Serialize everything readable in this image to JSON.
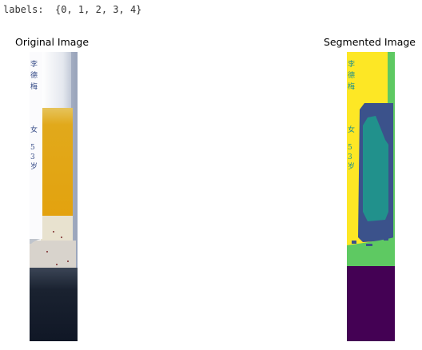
{
  "output": {
    "labels_line": "labels:  {0, 1, 2, 3, 4}"
  },
  "figure": {
    "left_title": "Original Image",
    "right_title": "Segmented Image",
    "left_handwriting": "李德梅 女 53岁"
  },
  "colors": {
    "viridis_yellow": "#fde725",
    "viridis_teal": "#21918c",
    "viridis_blue": "#3b528b",
    "viridis_green": "#5ec962",
    "viridis_purple": "#440154",
    "plasma_yellow": "#e8b21d",
    "tube_dark": "#1e2838"
  }
}
